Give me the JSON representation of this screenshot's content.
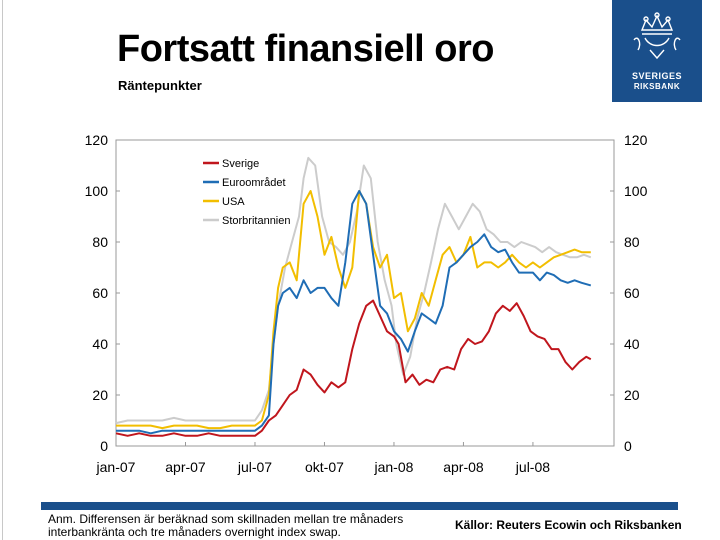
{
  "header": {
    "title": "Fortsatt finansiell oro",
    "subtitle": "Räntepunkter"
  },
  "logo": {
    "line1": "SVERIGES",
    "line2": "RIKSBANK",
    "color": "#1a4f8b"
  },
  "footer": {
    "note": "Anm. Differensen är beräknad som skillnaden mellan tre månaders interbankränta och tre månaders overnight index swap.",
    "sources": "Källor: Reuters Ecowin och Riksbanken"
  },
  "chart_data": {
    "type": "line",
    "title": "",
    "xlabel": "",
    "ylabel": "Räntepunkter",
    "ylim": [
      0,
      120
    ],
    "yticks": [
      0,
      20,
      40,
      60,
      80,
      100,
      120
    ],
    "xlim": [
      0,
      21.5
    ],
    "xticks": [
      {
        "label": "jan-07",
        "x": 0
      },
      {
        "label": "apr-07",
        "x": 3
      },
      {
        "label": "jul-07",
        "x": 6
      },
      {
        "label": "okt-07",
        "x": 9
      },
      {
        "label": "jan-08",
        "x": 12
      },
      {
        "label": "apr-08",
        "x": 15
      },
      {
        "label": "jul-08",
        "x": 18
      }
    ],
    "legend_position": "top-left",
    "series": [
      {
        "name": "Sverige",
        "color": "#c0161d",
        "points": [
          [
            0,
            5
          ],
          [
            0.5,
            4
          ],
          [
            1,
            5
          ],
          [
            1.5,
            4
          ],
          [
            2,
            4
          ],
          [
            2.5,
            5
          ],
          [
            3,
            4
          ],
          [
            3.5,
            4
          ],
          [
            4,
            5
          ],
          [
            4.5,
            4
          ],
          [
            5,
            4
          ],
          [
            5.5,
            4
          ],
          [
            6,
            4
          ],
          [
            6.3,
            6
          ],
          [
            6.6,
            10
          ],
          [
            6.9,
            12
          ],
          [
            7.2,
            16
          ],
          [
            7.5,
            20
          ],
          [
            7.8,
            22
          ],
          [
            8.1,
            30
          ],
          [
            8.4,
            28
          ],
          [
            8.7,
            24
          ],
          [
            9,
            21
          ],
          [
            9.3,
            25
          ],
          [
            9.6,
            23
          ],
          [
            9.9,
            25
          ],
          [
            10.2,
            38
          ],
          [
            10.5,
            48
          ],
          [
            10.8,
            55
          ],
          [
            11.1,
            57
          ],
          [
            11.4,
            51
          ],
          [
            11.7,
            45
          ],
          [
            12,
            43
          ],
          [
            12.2,
            40
          ],
          [
            12.5,
            25
          ],
          [
            12.8,
            28
          ],
          [
            13.1,
            24
          ],
          [
            13.4,
            26
          ],
          [
            13.7,
            25
          ],
          [
            14,
            30
          ],
          [
            14.3,
            31
          ],
          [
            14.6,
            30
          ],
          [
            14.9,
            38
          ],
          [
            15.2,
            42
          ],
          [
            15.5,
            40
          ],
          [
            15.8,
            41
          ],
          [
            16.1,
            45
          ],
          [
            16.4,
            52
          ],
          [
            16.7,
            55
          ],
          [
            17,
            53
          ],
          [
            17.3,
            56
          ],
          [
            17.6,
            51
          ],
          [
            17.9,
            45
          ],
          [
            18.2,
            43
          ],
          [
            18.5,
            42
          ],
          [
            18.8,
            38
          ],
          [
            19.1,
            38
          ],
          [
            19.4,
            33
          ],
          [
            19.7,
            30
          ],
          [
            20,
            33
          ],
          [
            20.3,
            35
          ],
          [
            20.5,
            34
          ]
        ]
      },
      {
        "name": "Euroområdet",
        "color": "#1f6db5",
        "points": [
          [
            0,
            6
          ],
          [
            0.5,
            6
          ],
          [
            1,
            6
          ],
          [
            1.5,
            5
          ],
          [
            2,
            6
          ],
          [
            2.5,
            6
          ],
          [
            3,
            6
          ],
          [
            3.5,
            6
          ],
          [
            4,
            6
          ],
          [
            4.5,
            6
          ],
          [
            5,
            6
          ],
          [
            5.5,
            6
          ],
          [
            6,
            6
          ],
          [
            6.3,
            8
          ],
          [
            6.6,
            12
          ],
          [
            6.8,
            40
          ],
          [
            7,
            55
          ],
          [
            7.2,
            60
          ],
          [
            7.5,
            62
          ],
          [
            7.8,
            58
          ],
          [
            8.1,
            65
          ],
          [
            8.4,
            60
          ],
          [
            8.7,
            62
          ],
          [
            9,
            62
          ],
          [
            9.3,
            58
          ],
          [
            9.6,
            55
          ],
          [
            9.9,
            72
          ],
          [
            10.2,
            95
          ],
          [
            10.5,
            100
          ],
          [
            10.8,
            95
          ],
          [
            11.1,
            75
          ],
          [
            11.4,
            55
          ],
          [
            11.7,
            52
          ],
          [
            12,
            45
          ],
          [
            12.3,
            42
          ],
          [
            12.6,
            37
          ],
          [
            12.9,
            45
          ],
          [
            13.2,
            52
          ],
          [
            13.5,
            50
          ],
          [
            13.8,
            48
          ],
          [
            14.1,
            55
          ],
          [
            14.4,
            70
          ],
          [
            14.7,
            72
          ],
          [
            15,
            75
          ],
          [
            15.3,
            78
          ],
          [
            15.6,
            80
          ],
          [
            15.9,
            83
          ],
          [
            16.2,
            78
          ],
          [
            16.5,
            76
          ],
          [
            16.8,
            77
          ],
          [
            17.1,
            72
          ],
          [
            17.4,
            68
          ],
          [
            17.7,
            68
          ],
          [
            18,
            68
          ],
          [
            18.3,
            65
          ],
          [
            18.6,
            68
          ],
          [
            18.9,
            67
          ],
          [
            19.2,
            65
          ],
          [
            19.5,
            64
          ],
          [
            19.8,
            65
          ],
          [
            20.1,
            64
          ],
          [
            20.5,
            63
          ]
        ]
      },
      {
        "name": "USA",
        "color": "#f2be00",
        "points": [
          [
            0,
            8
          ],
          [
            0.5,
            8
          ],
          [
            1,
            8
          ],
          [
            1.5,
            8
          ],
          [
            2,
            7
          ],
          [
            2.5,
            8
          ],
          [
            3,
            8
          ],
          [
            3.5,
            8
          ],
          [
            4,
            7
          ],
          [
            4.5,
            7
          ],
          [
            5,
            8
          ],
          [
            5.5,
            8
          ],
          [
            6,
            8
          ],
          [
            6.3,
            10
          ],
          [
            6.6,
            20
          ],
          [
            6.8,
            45
          ],
          [
            7,
            62
          ],
          [
            7.2,
            70
          ],
          [
            7.5,
            72
          ],
          [
            7.8,
            65
          ],
          [
            8.1,
            95
          ],
          [
            8.4,
            100
          ],
          [
            8.7,
            90
          ],
          [
            9,
            75
          ],
          [
            9.3,
            82
          ],
          [
            9.6,
            70
          ],
          [
            9.9,
            62
          ],
          [
            10.2,
            70
          ],
          [
            10.5,
            100
          ],
          [
            10.8,
            95
          ],
          [
            11.1,
            78
          ],
          [
            11.4,
            70
          ],
          [
            11.7,
            75
          ],
          [
            12,
            58
          ],
          [
            12.3,
            60
          ],
          [
            12.6,
            45
          ],
          [
            12.9,
            50
          ],
          [
            13.2,
            60
          ],
          [
            13.5,
            55
          ],
          [
            13.8,
            65
          ],
          [
            14.1,
            75
          ],
          [
            14.4,
            78
          ],
          [
            14.7,
            72
          ],
          [
            15,
            75
          ],
          [
            15.3,
            82
          ],
          [
            15.6,
            70
          ],
          [
            15.9,
            72
          ],
          [
            16.2,
            72
          ],
          [
            16.5,
            70
          ],
          [
            16.8,
            72
          ],
          [
            17.1,
            75
          ],
          [
            17.4,
            72
          ],
          [
            17.7,
            70
          ],
          [
            18,
            72
          ],
          [
            18.3,
            70
          ],
          [
            18.6,
            72
          ],
          [
            18.9,
            74
          ],
          [
            19.2,
            75
          ],
          [
            19.5,
            76
          ],
          [
            19.8,
            77
          ],
          [
            20.1,
            76
          ],
          [
            20.5,
            76
          ]
        ]
      },
      {
        "name": "Storbritannien",
        "color": "#cccccc",
        "points": [
          [
            0,
            9
          ],
          [
            0.5,
            10
          ],
          [
            1,
            10
          ],
          [
            1.5,
            10
          ],
          [
            2,
            10
          ],
          [
            2.5,
            11
          ],
          [
            3,
            10
          ],
          [
            3.5,
            10
          ],
          [
            4,
            10
          ],
          [
            4.5,
            10
          ],
          [
            5,
            10
          ],
          [
            5.5,
            10
          ],
          [
            6,
            10
          ],
          [
            6.3,
            14
          ],
          [
            6.6,
            22
          ],
          [
            6.8,
            40
          ],
          [
            7,
            55
          ],
          [
            7.3,
            70
          ],
          [
            7.6,
            80
          ],
          [
            7.9,
            90
          ],
          [
            8.1,
            105
          ],
          [
            8.3,
            113
          ],
          [
            8.6,
            110
          ],
          [
            8.9,
            90
          ],
          [
            9.2,
            80
          ],
          [
            9.5,
            78
          ],
          [
            9.8,
            75
          ],
          [
            10.1,
            80
          ],
          [
            10.4,
            92
          ],
          [
            10.7,
            110
          ],
          [
            11,
            105
          ],
          [
            11.3,
            80
          ],
          [
            11.6,
            65
          ],
          [
            11.9,
            55
          ],
          [
            12.1,
            40
          ],
          [
            12.4,
            28
          ],
          [
            12.7,
            35
          ],
          [
            13,
            50
          ],
          [
            13.3,
            60
          ],
          [
            13.6,
            72
          ],
          [
            13.9,
            85
          ],
          [
            14.2,
            95
          ],
          [
            14.5,
            90
          ],
          [
            14.8,
            85
          ],
          [
            15.1,
            90
          ],
          [
            15.4,
            95
          ],
          [
            15.7,
            92
          ],
          [
            16,
            85
          ],
          [
            16.3,
            83
          ],
          [
            16.6,
            80
          ],
          [
            16.9,
            80
          ],
          [
            17.2,
            78
          ],
          [
            17.5,
            80
          ],
          [
            17.8,
            79
          ],
          [
            18.1,
            78
          ],
          [
            18.4,
            76
          ],
          [
            18.7,
            78
          ],
          [
            19,
            76
          ],
          [
            19.3,
            75
          ],
          [
            19.6,
            74
          ],
          [
            19.9,
            74
          ],
          [
            20.2,
            75
          ],
          [
            20.5,
            74
          ]
        ]
      }
    ]
  }
}
